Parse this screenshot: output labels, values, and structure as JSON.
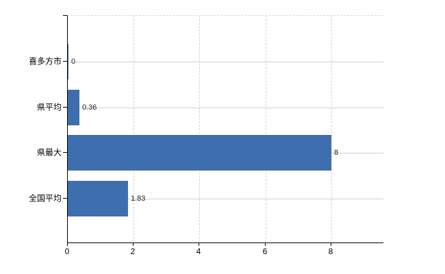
{
  "chart_data": {
    "type": "bar",
    "orientation": "horizontal",
    "title": "",
    "xlabel": "",
    "ylabel": "",
    "categories": [
      "喜多方市",
      "県平均",
      "県最大",
      "全国平均"
    ],
    "values": [
      0,
      0.36,
      8,
      1.83
    ],
    "data_labels": [
      "0",
      "0.36",
      "8",
      "1.83"
    ],
    "x_ticks": [
      0,
      2,
      4,
      6,
      8
    ],
    "x_tick_labels": [
      "0",
      "2",
      "4",
      "6",
      "8"
    ],
    "xlim": [
      0,
      9.58
    ],
    "grid": true,
    "legend": false
  },
  "colors": {
    "bar": "#3f6eae",
    "axis": "#000000",
    "vertical_gridline": "#d7d0d7",
    "horizontal_gridline": "#ccd6cc",
    "top_border": "#d9d9d9",
    "data_label_text": "#222222",
    "axis_label_text": "#000000",
    "background": "#ffffff"
  }
}
